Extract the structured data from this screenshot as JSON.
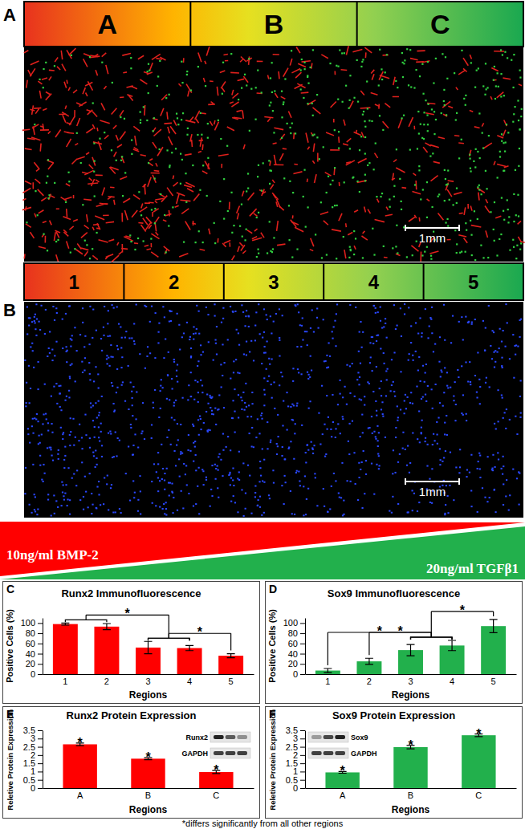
{
  "figure": {
    "panels": [
      {
        "label": "A",
        "zones": [
          "A",
          "B",
          "C"
        ],
        "scale_bar": "1mm"
      },
      {
        "label": "B",
        "zones": [
          "1",
          "2",
          "3",
          "4",
          "5"
        ],
        "scale_bar": "1mm"
      }
    ],
    "gradient": {
      "left": "10ng/ml BMP-2",
      "right": "20ng/ml TGFβ1"
    },
    "footnote": "*differs significantly from all other regions"
  },
  "chart_data": [
    {
      "type": "bar",
      "panel_label": "C",
      "title": "Runx2 Immunofluorescence",
      "x_label": "Regions",
      "y_label": "Positive Cells (%)",
      "categories": [
        "1",
        "2",
        "3",
        "4",
        "5"
      ],
      "values": [
        98,
        93,
        52,
        51,
        36
      ],
      "errors": [
        2,
        6,
        12,
        5,
        4
      ],
      "color": "#ff0000",
      "ylim": [
        0,
        110
      ],
      "yticks": [
        0,
        20,
        40,
        60,
        80,
        100
      ],
      "significance": [
        {
          "text": "*",
          "groups": [
            [
              0,
              1
            ],
            [
              2,
              3
            ]
          ]
        },
        {
          "text": "*",
          "groups": [
            [
              2,
              3
            ],
            [
              4
            ]
          ]
        }
      ]
    },
    {
      "type": "bar",
      "panel_label": "D",
      "title": "Sox9 Immunofluorescence",
      "x_label": "Regions",
      "y_label": "Positive Cells (%)",
      "categories": [
        "1",
        "2",
        "3",
        "4",
        "5"
      ],
      "values": [
        7,
        25,
        47,
        56,
        94
      ],
      "errors": [
        4,
        6,
        11,
        10,
        13
      ],
      "color": "#22b04c",
      "ylim": [
        0,
        110
      ],
      "yticks": [
        0,
        20,
        40,
        60,
        80,
        100
      ],
      "significance": [
        {
          "text": "*",
          "groups": [
            [
              0
            ],
            [
              2,
              3
            ]
          ]
        },
        {
          "text": "*",
          "groups": [
            [
              1
            ],
            [
              2,
              3
            ]
          ]
        },
        {
          "text": "*",
          "groups": [
            [
              2,
              3
            ],
            [
              4
            ]
          ]
        }
      ]
    },
    {
      "type": "bar",
      "panel_label": "E",
      "title": "Runx2 Protein Expression",
      "x_label": "Regions",
      "y_label": "Reletive Protein Expression",
      "categories": [
        "A",
        "B",
        "C"
      ],
      "values": [
        2.65,
        1.78,
        0.97
      ],
      "errors": [
        0.08,
        0.06,
        0.09
      ],
      "color": "#ff0000",
      "ylim": [
        0,
        3.5
      ],
      "yticks": [
        0,
        0.5,
        1,
        1.5,
        2,
        2.5,
        3,
        3.5
      ],
      "annotations": [
        {
          "text": "*",
          "category": 0
        },
        {
          "text": "*",
          "category": 1
        },
        {
          "text": "*",
          "category": 2
        }
      ],
      "inset": {
        "labels": [
          "Runx2",
          "GAPDH"
        ]
      }
    },
    {
      "type": "bar",
      "panel_label": "F",
      "title": "Sox9 Protein Expression",
      "x_label": "Regions",
      "y_label": "Reletive Protein Expression",
      "categories": [
        "A",
        "B",
        "C"
      ],
      "values": [
        0.95,
        2.48,
        3.2
      ],
      "errors": [
        0.05,
        0.1,
        0.08
      ],
      "color": "#22b04c",
      "ylim": [
        0,
        3.5
      ],
      "yticks": [
        0,
        0.5,
        1,
        1.5,
        2,
        2.5,
        3,
        3.5
      ],
      "annotations": [
        {
          "text": "*",
          "category": 0
        },
        {
          "text": "*",
          "category": 1
        },
        {
          "text": "*",
          "category": 2
        }
      ],
      "inset": {
        "labels": [
          "Sox9",
          "GAPDH"
        ]
      }
    }
  ]
}
